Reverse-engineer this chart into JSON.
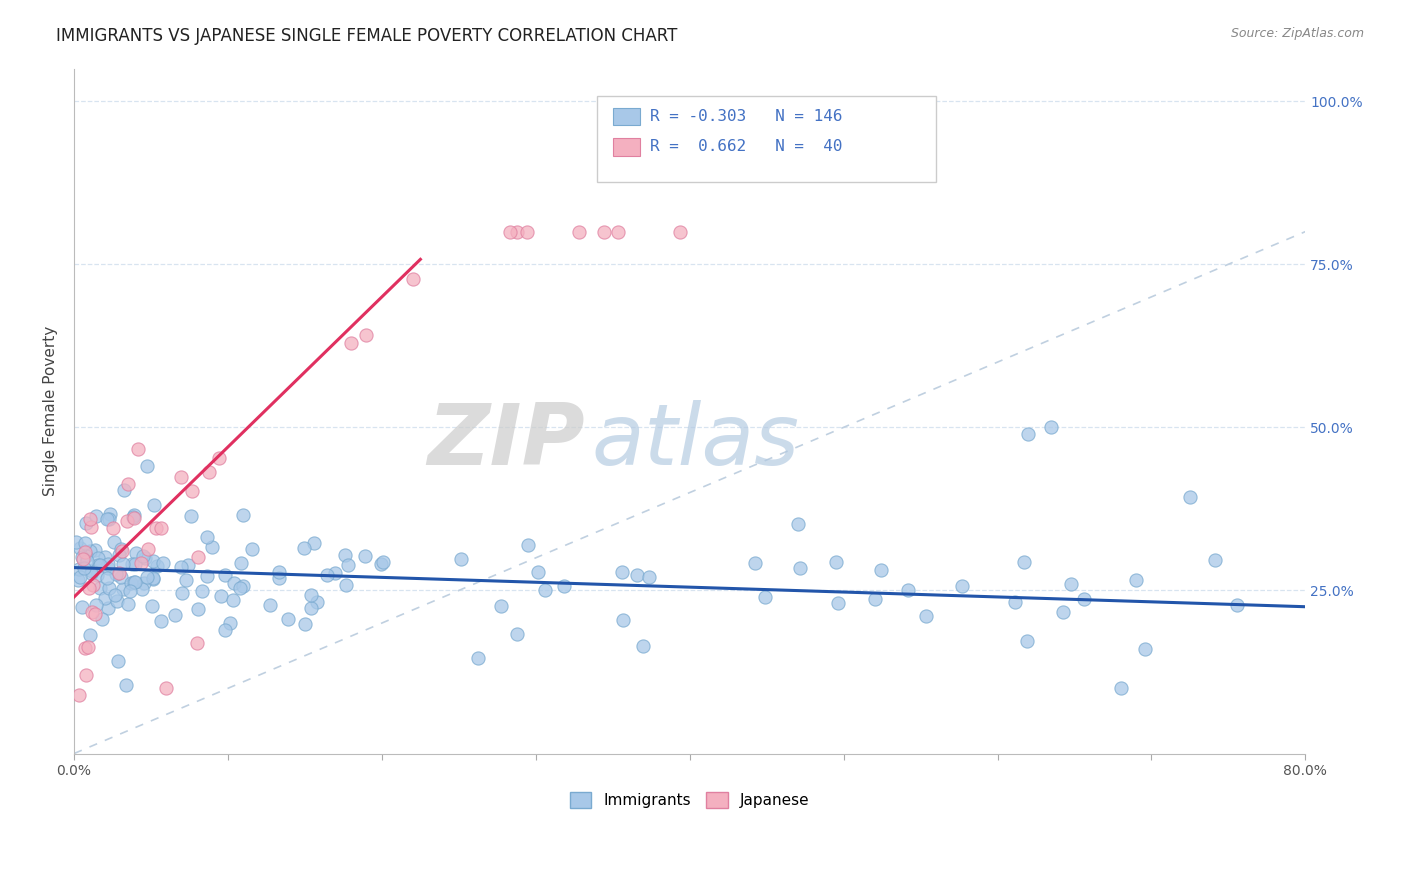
{
  "title": "IMMIGRANTS VS JAPANESE SINGLE FEMALE POVERTY CORRELATION CHART",
  "source": "Source: ZipAtlas.com",
  "ylabel": "Single Female Poverty",
  "xlim": [
    0.0,
    0.8
  ],
  "ylim": [
    0.0,
    1.05
  ],
  "blue_color": "#A8C8E8",
  "blue_edge_color": "#7AAAD0",
  "pink_color": "#F4B0C0",
  "pink_edge_color": "#E080A0",
  "blue_line_color": "#2255AA",
  "pink_line_color": "#E03060",
  "diagonal_color": "#C0D0E0",
  "grid_color": "#D8E4F0",
  "blue_intercept": 0.285,
  "blue_slope": -0.075,
  "pink_intercept": 0.24,
  "pink_slope": 2.3,
  "pink_line_x_end": 0.225,
  "right_tick_color": "#4472C4",
  "title_fontsize": 12,
  "source_fontsize": 9,
  "legend_text_color": "#4472C4"
}
